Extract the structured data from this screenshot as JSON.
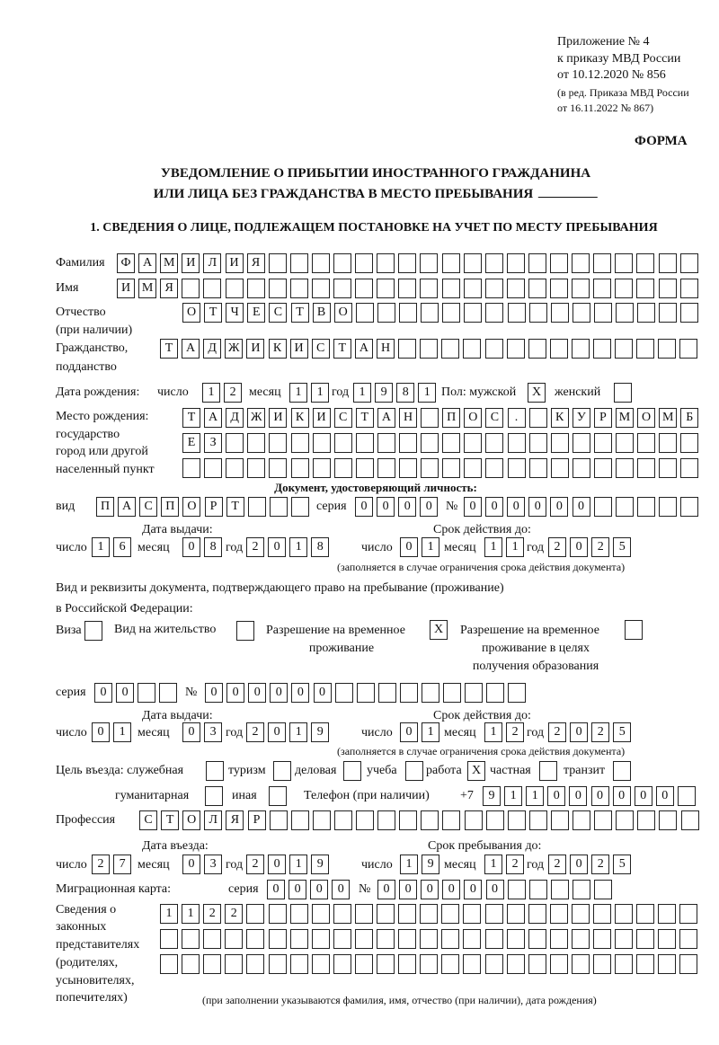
{
  "header": {
    "annex": "Приложение № 4",
    "order": "к приказу МВД России",
    "order_date": "от 10.12.2020 № 856",
    "edition": "(в ред. Приказа МВД России",
    "edition_date": "от 16.11.2022 № 867)",
    "form_label": "ФОРМА",
    "title_line1": "УВЕДОМЛЕНИЕ О ПРИБЫТИИ ИНОСТРАННОГО ГРАЖДАНИНА",
    "title_line2": "ИЛИ ЛИЦА БЕЗ ГРАЖДАНСТВА В МЕСТО ПРЕБЫВАНИЯ"
  },
  "section1": {
    "heading": "1. СВЕДЕНИЯ О ЛИЦЕ, ПОДЛЕЖАЩЕМ ПОСТАНОВКЕ НА УЧЕТ ПО МЕСТУ ПРЕБЫВАНИЯ"
  },
  "person": {
    "surname_label": "Фамилия",
    "surname": "ФАМИЛИЯ",
    "name_label": "Имя",
    "name": "ИМЯ",
    "patronymic_label": "Отчество",
    "patronymic_note": "(при наличии)",
    "patronymic": "ОТЧЕСТВО",
    "citizenship_label1": "Гражданство,",
    "citizenship_label2": "подданство",
    "citizenship": "ТАДЖИКИСТАН",
    "birth_label": "Дата рождения:",
    "day_label": "число",
    "month_label": "месяц",
    "year_label": "год",
    "birth_day": "12",
    "birth_month": "11",
    "birth_year": "1981",
    "sex_male_label": "Пол: мужской",
    "sex_male": "X",
    "sex_female_label": "женский",
    "sex_female": "",
    "birthplace_label1": "Место рождения:",
    "birthplace_label2": "государство",
    "birthplace_label3": "город или другой",
    "birthplace_label4": "населенный пункт",
    "birthplace_row1": "ТАДЖИКИСТАН ПОС. КУРМОМБ",
    "birthplace_row2": "ЕЗ",
    "birthplace_row3": ""
  },
  "identity_doc": {
    "heading": "Документ, удостоверяющий личность:",
    "type_label": "вид",
    "type": "ПАСПОРТ",
    "series_label": "серия",
    "series": "0000",
    "number_label": "№",
    "number": "000000",
    "issue_label": "Дата выдачи:",
    "valid_label": "Срок действия до:",
    "issue_day": "16",
    "issue_month": "08",
    "issue_year": "2018",
    "valid_day": "01",
    "valid_month": "11",
    "valid_year": "2025",
    "note": "(заполняется в случае ограничения срока действия документа)"
  },
  "residence_doc": {
    "heading1": "Вид и реквизиты документа, подтверждающего право на пребывание (проживание)",
    "heading2": "в Российской Федерации:",
    "visa_label": "Виза",
    "visa": "",
    "residence_permit_label": "Вид на жительство",
    "residence_permit": "",
    "temp_permit_label1": "Разрешение на временное",
    "temp_permit_label2": "проживание",
    "temp_permit": "X",
    "edu_permit_label1": "Разрешение на временное",
    "edu_permit_label2": "проживание в целях",
    "edu_permit_label3": "получения образования",
    "edu_permit": "",
    "series_label": "серия",
    "series": "00",
    "number_label": "№",
    "number": "000000",
    "issue_label": "Дата выдачи:",
    "valid_label": "Срок действия до:",
    "issue_day": "01",
    "issue_month": "03",
    "issue_year": "2019",
    "valid_day": "01",
    "valid_month": "12",
    "valid_year": "2025",
    "note": "(заполняется в случае ограничения срока действия документа)"
  },
  "purpose": {
    "label": "Цель въезда: служебная",
    "service": "",
    "tourism_label": "туризм",
    "tourism": "",
    "business_label": "деловая",
    "business": "",
    "study_label": "учеба",
    "study": "",
    "work_label": "работа",
    "work": "X",
    "private_label": "частная",
    "private": "",
    "transit_label": "транзит",
    "transit": "",
    "humanitarian_label": "гуманитарная",
    "humanitarian": "",
    "other_label": "иная",
    "other": ""
  },
  "phone": {
    "label": "Телефон (при наличии)",
    "prefix": "+7",
    "number": "911000000"
  },
  "profession": {
    "label": "Профессия",
    "value": "СТОЛЯР"
  },
  "entry": {
    "entry_label": "Дата въезда:",
    "stay_label": "Срок пребывания до:",
    "entry_day": "27",
    "entry_month": "03",
    "entry_year": "2019",
    "stay_day": "19",
    "stay_month": "12",
    "stay_year": "2025"
  },
  "migration_card": {
    "label": "Миграционная карта:",
    "series_label": "серия",
    "series": "0000",
    "number_label": "№",
    "number": "000000"
  },
  "representatives": {
    "label1": "Сведения о",
    "label2": "законных",
    "label3": "представителях",
    "label4": "(родителях,",
    "label5": "усыновителях,",
    "label6": "попечителях)",
    "row1": "1122",
    "row2": "",
    "row3": "",
    "note": "(при заполнении указываются фамилия, имя, отчество (при наличии), дата рождения)"
  },
  "colors": {
    "ink": "#111111",
    "paper": "#ffffff"
  }
}
